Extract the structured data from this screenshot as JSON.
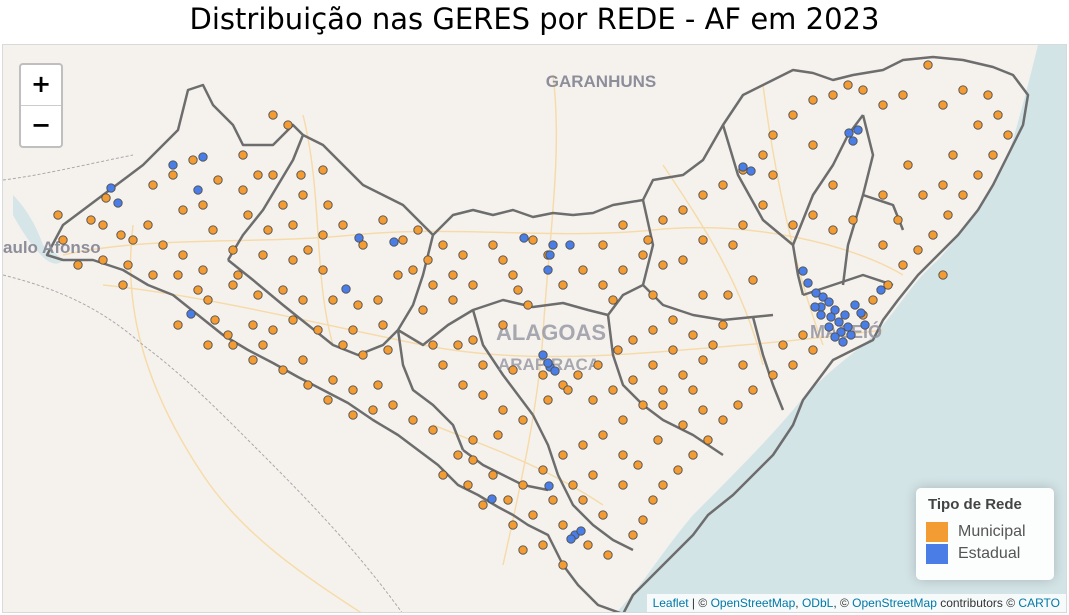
{
  "title": "Distribuição nas GERES por REDE - AF em 2023",
  "zoom": {
    "in_label": "+",
    "out_label": "−"
  },
  "places": {
    "garanhuns": "GARANHUNS",
    "alagoas": "ALAGOAS",
    "arapiraca": "ARAPIRACA",
    "maceio": "MACEIÓ",
    "paulo_afonso": "aulo Afonso"
  },
  "legend": {
    "title": "Tipo de Rede",
    "items": [
      {
        "label": "Municipal",
        "color": "#f39c34"
      },
      {
        "label": "Estadual",
        "color": "#4a7ee6"
      }
    ]
  },
  "attribution": {
    "leaflet": "Leaflet",
    "sep1": " | © ",
    "osm1": "OpenStreetMap",
    "sep2": ", ",
    "odbl": "ODbL",
    "sep3": ", © ",
    "osm2": "OpenStreetMap",
    "sep4": " contributors © ",
    "carto": "CARTO"
  },
  "colors": {
    "municipal": "#f39c34",
    "estadual": "#4a7ee6",
    "sea": "#d3e4e7",
    "land": "#f5f2ee",
    "border": "#6d6d6d"
  },
  "icons": {
    "zoom_in": "plus-icon",
    "zoom_out": "minus-icon"
  }
}
